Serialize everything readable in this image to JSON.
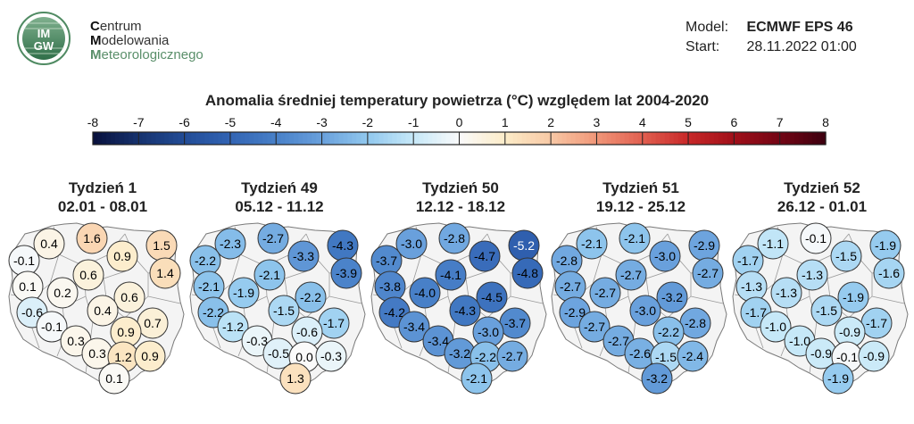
{
  "header": {
    "org_lines": [
      {
        "cap": "C",
        "rest": "entrum"
      },
      {
        "cap": "M",
        "rest": "odelowania"
      },
      {
        "cap": "M",
        "rest": "eteorologicznego"
      }
    ],
    "logo_top": "IM",
    "logo_bottom": "GW",
    "model_label": "Model:",
    "model_value": "ECMWF EPS 46",
    "start_label": "Start:",
    "start_value": "28.11.2022 01:00"
  },
  "chart_data": {
    "type": "map",
    "title": "Anomalia średniej temperatury powietrza (°C) względem lat 2004-2020",
    "colorbar": {
      "ticks": [
        "-8",
        "-7",
        "-6",
        "-5",
        "-4",
        "-3",
        "-2",
        "-1",
        "0",
        "1",
        "2",
        "3",
        "4",
        "5",
        "6",
        "7",
        "8"
      ],
      "range": [
        -8,
        8
      ]
    },
    "weeks": [
      {
        "label": "Tydzień 1",
        "dates": "02.01 - 08.01",
        "values": [
          0.4,
          1.6,
          1.5,
          -0.1,
          0.9,
          0.6,
          1.4,
          0.1,
          0.2,
          0.6,
          -0.6,
          0.4,
          0.7,
          -0.1,
          0.9,
          0.3,
          0.3,
          1.2,
          0.9,
          0.1
        ]
      },
      {
        "label": "Tydzień 49",
        "dates": "05.12 - 11.12",
        "values": [
          -2.3,
          -2.7,
          -4.3,
          -2.2,
          -3.3,
          -2.1,
          -3.9,
          -2.1,
          -1.9,
          -2.2,
          -2.2,
          -1.5,
          -1.7,
          -1.2,
          -0.6,
          -0.3,
          -0.5,
          -0.0,
          -0.3,
          1.3
        ]
      },
      {
        "label": "Tydzień 50",
        "dates": "12.12 - 18.12",
        "values": [
          -3.0,
          -2.8,
          -5.2,
          -3.7,
          -4.7,
          -4.1,
          -4.8,
          -3.8,
          -4.0,
          -4.5,
          -4.2,
          -4.3,
          -3.7,
          -3.4,
          -3.0,
          -3.4,
          -3.2,
          -2.2,
          -2.7,
          -2.1
        ]
      },
      {
        "label": "Tydzień 51",
        "dates": "19.12 - 25.12",
        "values": [
          -2.1,
          -2.1,
          -2.9,
          -2.8,
          -3.0,
          -2.7,
          -2.7,
          -2.7,
          -2.7,
          -3.2,
          -2.9,
          -3.0,
          -2.8,
          -2.7,
          -2.2,
          -2.7,
          -2.6,
          -1.5,
          -2.4,
          -3.2
        ]
      },
      {
        "label": "Tydzień 52",
        "dates": "26.12 - 01.01",
        "values": [
          -1.1,
          -0.1,
          -1.9,
          -1.7,
          -1.5,
          -1.3,
          -1.6,
          -1.3,
          -1.3,
          -1.9,
          -1.7,
          -1.5,
          -1.7,
          -1.0,
          -0.9,
          -1.0,
          -0.9,
          -0.1,
          -0.9,
          -1.9
        ]
      }
    ]
  }
}
